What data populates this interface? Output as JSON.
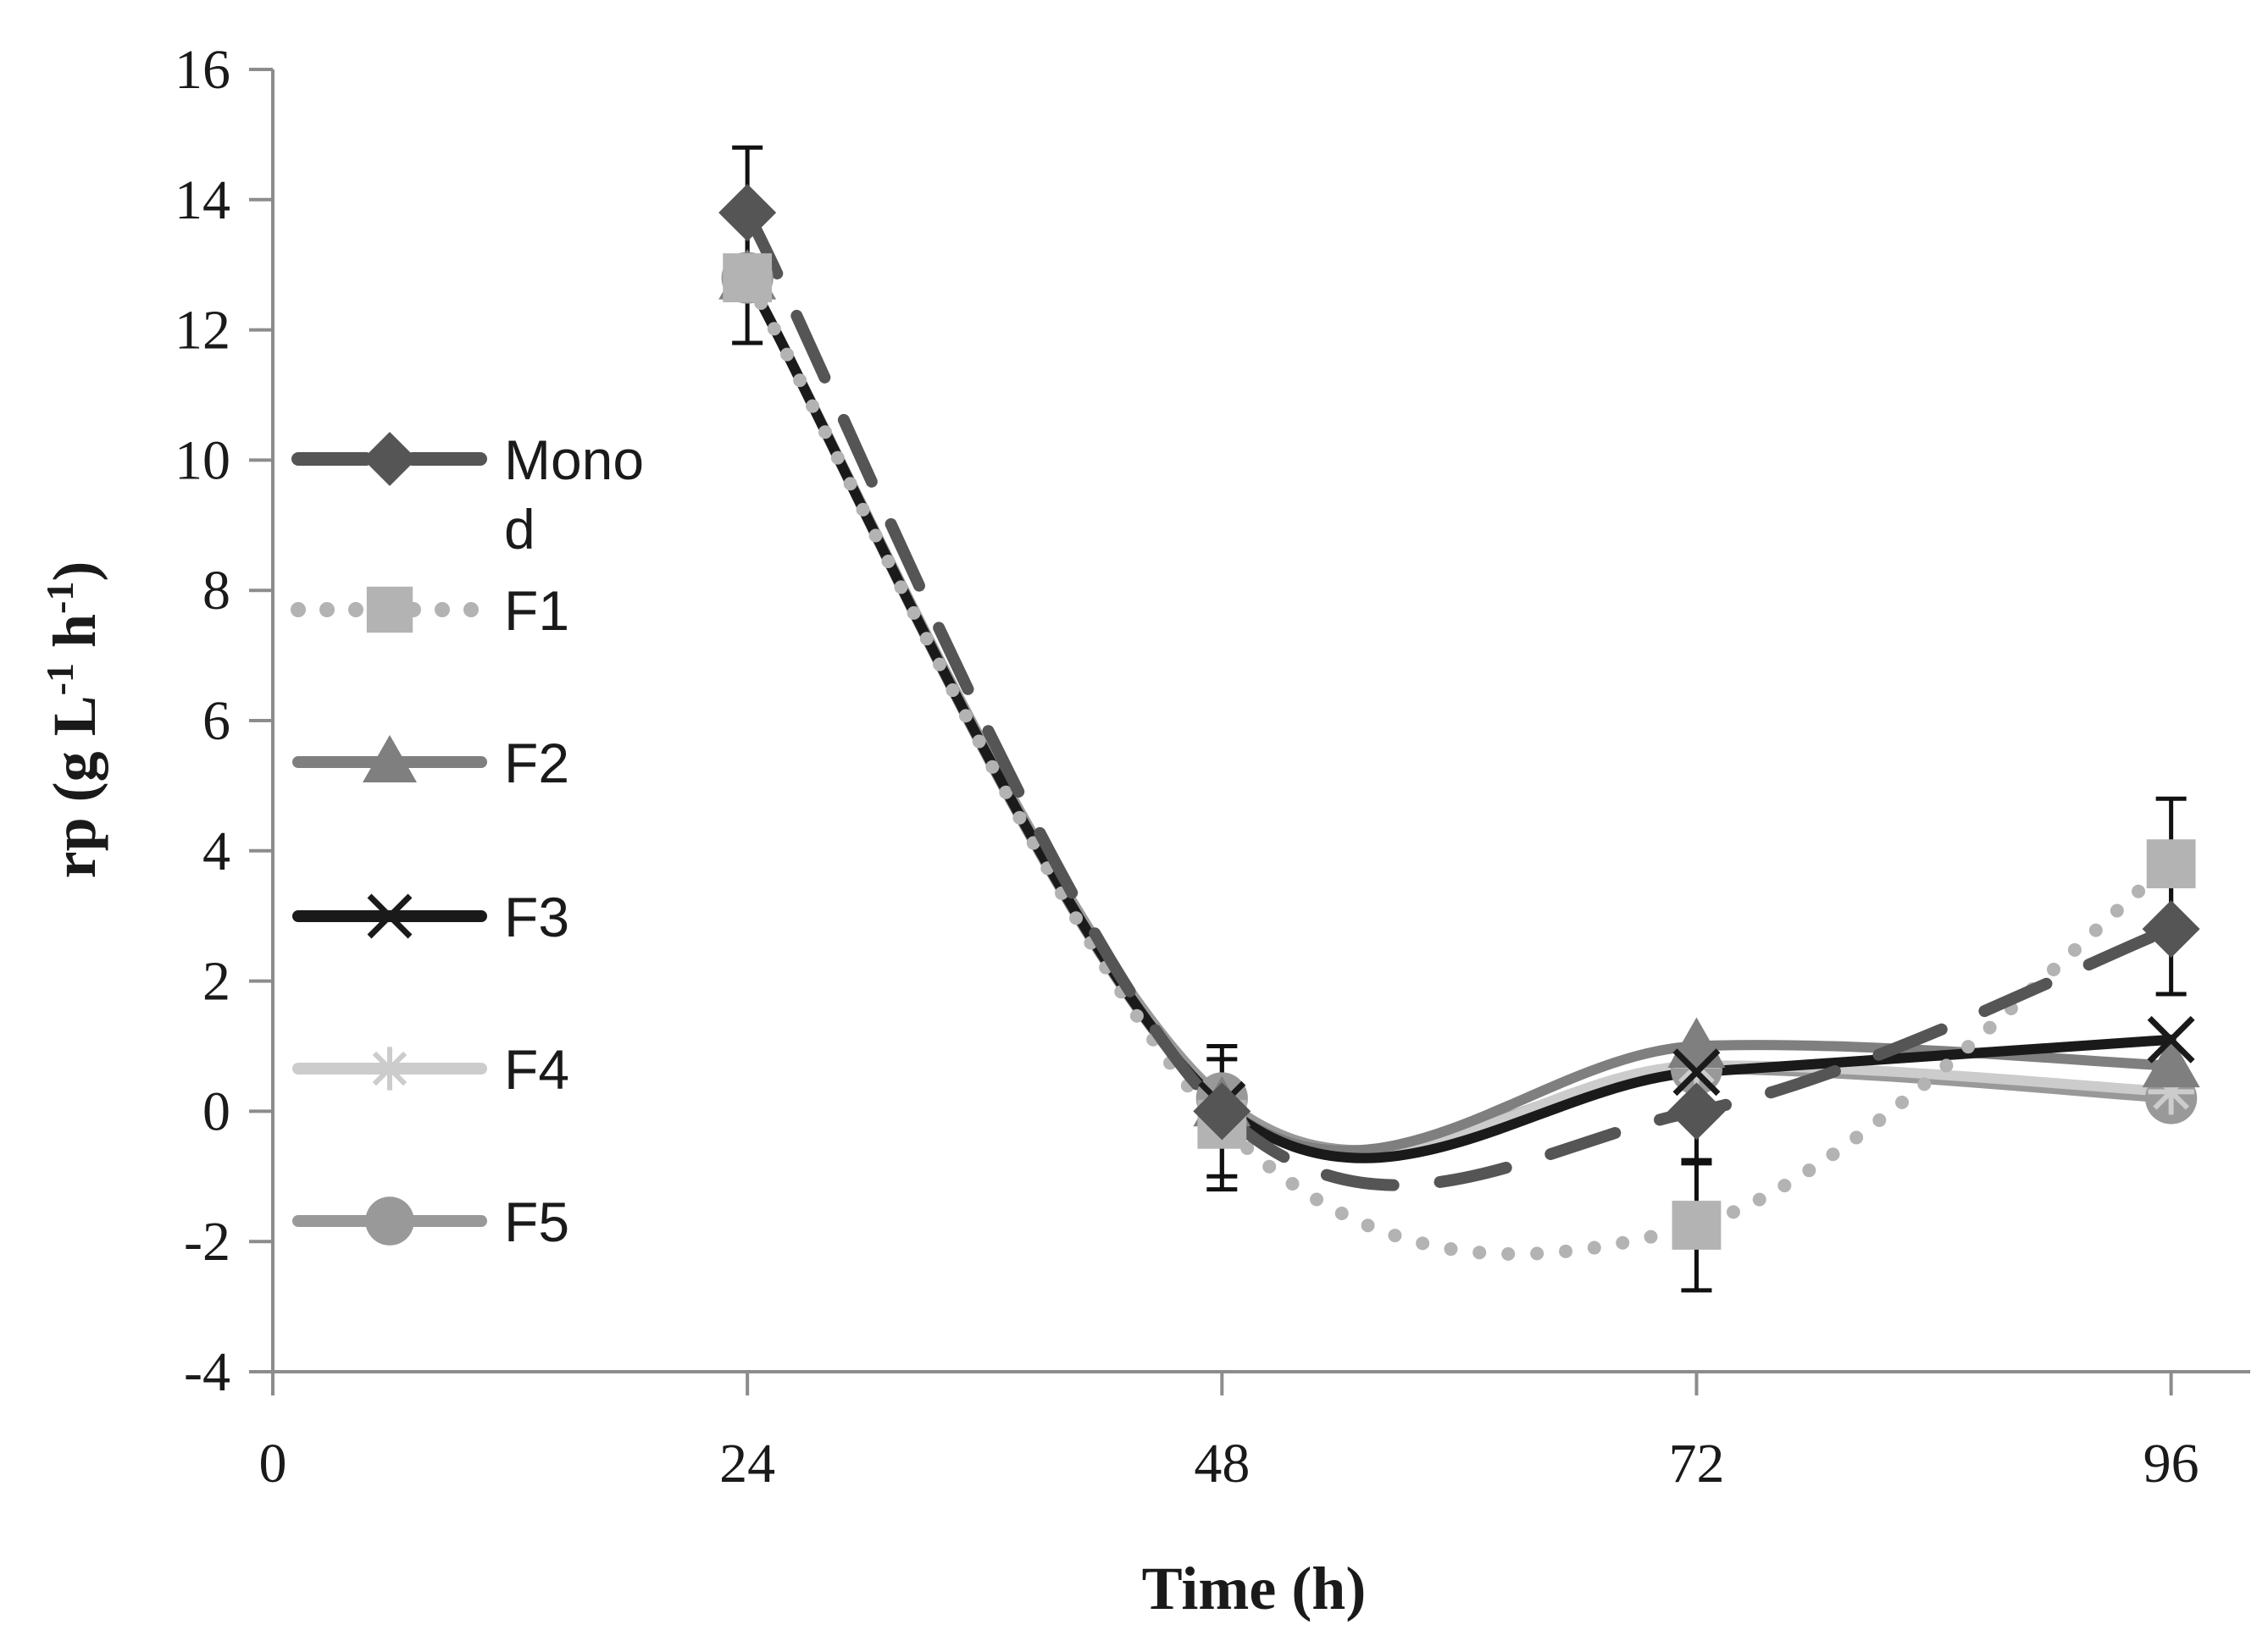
{
  "chart_data": {
    "type": "line",
    "title": "",
    "xlabel": "Time (h)",
    "ylabel_main": "rp (g L",
    "ylabel_sup1": "-1",
    "ylabel_mid": " h",
    "ylabel_sup2": "-1",
    "ylabel_end": ")",
    "xlim": [
      0,
      100
    ],
    "ylim": [
      -4,
      16
    ],
    "x_ticks": [
      0,
      24,
      48,
      72,
      96
    ],
    "y_ticks": [
      -4,
      -2,
      0,
      2,
      4,
      6,
      8,
      10,
      12,
      14,
      16
    ],
    "x_tick_labels": [
      "0",
      "24",
      "48",
      "72",
      "96"
    ],
    "y_tick_labels": [
      "-4",
      "-2",
      "0",
      "2",
      "4",
      "6",
      "8",
      "10",
      "12",
      "14",
      "16"
    ],
    "grid": false,
    "legend_position": "left-middle",
    "series": [
      {
        "name": "Mono",
        "name_wrap": "d",
        "x": [
          24,
          48,
          72,
          96
        ],
        "y": [
          13.8,
          0.0,
          0.0,
          2.8
        ],
        "error": [
          1.0,
          1.0,
          0.8,
          1.0
        ],
        "color": "#555555",
        "marker": "diamond",
        "line": "long-dash"
      },
      {
        "name": "F1",
        "x": [
          24,
          48,
          72,
          96
        ],
        "y": [
          12.8,
          -0.2,
          -1.75,
          3.8
        ],
        "error": [
          1.0,
          1.0,
          1.0,
          1.0
        ],
        "color": "#b3b3b3",
        "marker": "square",
        "line": "dotted"
      },
      {
        "name": "F2",
        "x": [
          24,
          48,
          72,
          96
        ],
        "y": [
          12.8,
          0.1,
          1.0,
          0.7
        ],
        "error": [
          0,
          0,
          0,
          0
        ],
        "color": "#7f7f7f",
        "marker": "triangle",
        "line": "solid"
      },
      {
        "name": "F3",
        "x": [
          24,
          48,
          72,
          96
        ],
        "y": [
          12.8,
          0.1,
          0.6,
          1.1
        ],
        "error": [
          0,
          0,
          0,
          0
        ],
        "color": "#1a1a1a",
        "marker": "x",
        "line": "solid"
      },
      {
        "name": "F4",
        "x": [
          24,
          48,
          72,
          96
        ],
        "y": [
          12.8,
          0.1,
          0.7,
          0.3
        ],
        "error": [
          0,
          0,
          0,
          0
        ],
        "color": "#cccccc",
        "marker": "asterisk",
        "line": "solid"
      },
      {
        "name": "F5",
        "x": [
          24,
          48,
          72,
          96
        ],
        "y": [
          12.8,
          0.2,
          0.65,
          0.2
        ],
        "error": [
          0,
          0,
          0,
          0
        ],
        "color": "#999999",
        "marker": "circle",
        "line": "solid"
      }
    ]
  }
}
